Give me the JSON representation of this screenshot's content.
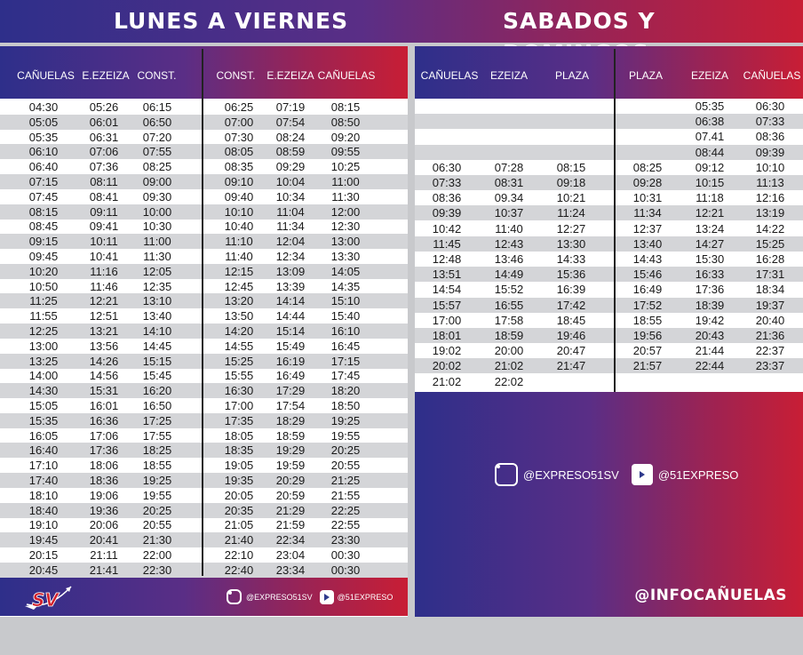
{
  "weekday": {
    "title": "LUNES A VIERNES",
    "headers": [
      "CAÑUELAS",
      "E.EZEIZA",
      "CONST.",
      "CONST.",
      "E.EZEIZA",
      "CAÑUELAS"
    ],
    "rows": [
      [
        "04:30",
        "05:26",
        "06:15",
        "06:25",
        "07:19",
        "08:15"
      ],
      [
        "05:05",
        "06:01",
        "06:50",
        "07:00",
        "07:54",
        "08:50"
      ],
      [
        "05:35",
        "06:31",
        "07:20",
        "07:30",
        "08:24",
        "09:20"
      ],
      [
        "06:10",
        "07:06",
        "07:55",
        "08:05",
        "08:59",
        "09:55"
      ],
      [
        "06:40",
        "07:36",
        "08:25",
        "08:35",
        "09:29",
        "10:25"
      ],
      [
        "07:15",
        "08:11",
        "09:00",
        "09:10",
        "10:04",
        "11:00"
      ],
      [
        "07:45",
        "08:41",
        "09:30",
        "09:40",
        "10:34",
        "11:30"
      ],
      [
        "08:15",
        "09:11",
        "10:00",
        "10:10",
        "11:04",
        "12:00"
      ],
      [
        "08:45",
        "09:41",
        "10:30",
        "10:40",
        "11:34",
        "12:30"
      ],
      [
        "09:15",
        "10:11",
        "11:00",
        "11:10",
        "12:04",
        "13:00"
      ],
      [
        "09:45",
        "10:41",
        "11:30",
        "11:40",
        "12:34",
        "13:30"
      ],
      [
        "10:20",
        "11:16",
        "12:05",
        "12:15",
        "13:09",
        "14:05"
      ],
      [
        "10:50",
        "11:46",
        "12:35",
        "12:45",
        "13:39",
        "14:35"
      ],
      [
        "11:25",
        "12:21",
        "13:10",
        "13:20",
        "14:14",
        "15:10"
      ],
      [
        "11:55",
        "12:51",
        "13:40",
        "13:50",
        "14:44",
        "15:40"
      ],
      [
        "12:25",
        "13:21",
        "14:10",
        "14:20",
        "15:14",
        "16:10"
      ],
      [
        "13:00",
        "13:56",
        "14:45",
        "14:55",
        "15:49",
        "16:45"
      ],
      [
        "13:25",
        "14:26",
        "15:15",
        "15:25",
        "16:19",
        "17:15"
      ],
      [
        "14:00",
        "14:56",
        "15:45",
        "15:55",
        "16:49",
        "17:45"
      ],
      [
        "14:30",
        "15:31",
        "16:20",
        "16:30",
        "17:29",
        "18:20"
      ],
      [
        "15:05",
        "16:01",
        "16:50",
        "17:00",
        "17:54",
        "18:50"
      ],
      [
        "15:35",
        "16:36",
        "17:25",
        "17:35",
        "18:29",
        "19:25"
      ],
      [
        "16:05",
        "17:06",
        "17:55",
        "18:05",
        "18:59",
        "19:55"
      ],
      [
        "16:40",
        "17:36",
        "18:25",
        "18:35",
        "19:29",
        "20:25"
      ],
      [
        "17:10",
        "18:06",
        "18:55",
        "19:05",
        "19:59",
        "20:55"
      ],
      [
        "17:40",
        "18:36",
        "19:25",
        "19:35",
        "20:29",
        "21:25"
      ],
      [
        "18:10",
        "19:06",
        "19:55",
        "20:05",
        "20:59",
        "21:55"
      ],
      [
        "18:40",
        "19:36",
        "20:25",
        "20:35",
        "21:29",
        "22:25"
      ],
      [
        "19:10",
        "20:06",
        "20:55",
        "21:05",
        "21:59",
        "22:55"
      ],
      [
        "19:45",
        "20:41",
        "21:30",
        "21:40",
        "22:34",
        "23:30"
      ],
      [
        "20:15",
        "21:11",
        "22:00",
        "22:10",
        "23:04",
        "00:30"
      ],
      [
        "20:45",
        "21:41",
        "22:30",
        "22:40",
        "23:34",
        "00:30"
      ]
    ],
    "footer_instagram": "@EXPRESO51SV",
    "footer_twitter": "@51EXPRESO",
    "logo_text": "SV"
  },
  "weekend": {
    "title": "SABADOS Y DOMINGOS",
    "headers": [
      "CAÑUELAS",
      "EZEIZA",
      "PLAZA",
      "PLAZA",
      "EZEIZA",
      "CAÑUELAS"
    ],
    "rows": [
      [
        "",
        "",
        "",
        "",
        "05:35",
        "06:30"
      ],
      [
        "",
        "",
        "",
        "",
        "06:38",
        "07:33"
      ],
      [
        "",
        "",
        "",
        "",
        "07.41",
        "08:36"
      ],
      [
        "",
        "",
        "",
        "",
        "08:44",
        "09:39"
      ],
      [
        "06:30",
        "07:28",
        "08:15",
        "08:25",
        "09:12",
        "10:10"
      ],
      [
        "07:33",
        "08:31",
        "09:18",
        "09:28",
        "10:15",
        "11:13"
      ],
      [
        "08:36",
        "09.34",
        "10:21",
        "10:31",
        "11:18",
        "12:16"
      ],
      [
        "09:39",
        "10:37",
        "11:24",
        "11:34",
        "12:21",
        "13:19"
      ],
      [
        "10:42",
        "11:40",
        "12:27",
        "12:37",
        "13:24",
        "14:22"
      ],
      [
        "11:45",
        "12:43",
        "13:30",
        "13:40",
        "14:27",
        "15:25"
      ],
      [
        "12:48",
        "13:46",
        "14:33",
        "14:43",
        "15:30",
        "16:28"
      ],
      [
        "13:51",
        "14:49",
        "15:36",
        "15:46",
        "16:33",
        "17:31"
      ],
      [
        "14:54",
        "15:52",
        "16:39",
        "16:49",
        "17:36",
        "18:34"
      ],
      [
        "15:57",
        "16:55",
        "17:42",
        "17:52",
        "18:39",
        "19:37"
      ],
      [
        "17:00",
        "17:58",
        "18:45",
        "18:55",
        "19:42",
        "20:40"
      ],
      [
        "18:01",
        "18:59",
        "19:46",
        "19:56",
        "20:43",
        "21:36"
      ],
      [
        "19:02",
        "20:00",
        "20:47",
        "20:57",
        "21:44",
        "22:37"
      ],
      [
        "20:02",
        "21:02",
        "21:47",
        "21:57",
        "22:44",
        "23:37"
      ],
      [
        "21:02",
        "22:02",
        "",
        "",
        "",
        ""
      ]
    ],
    "instagram": "@EXPRESO51SV",
    "twitter": "@51EXPRESO",
    "info": "@INFOCAÑUELAS"
  },
  "colors": {
    "blue": "#2e2f8a",
    "purple": "#5a2e86",
    "red": "#c81e35",
    "stripe": "#d4d5d8"
  }
}
